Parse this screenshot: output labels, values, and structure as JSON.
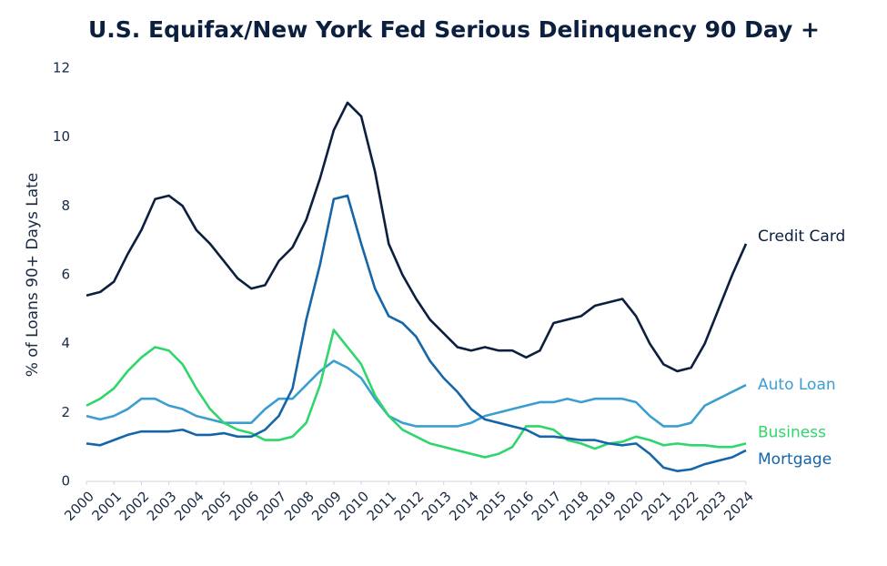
{
  "chart_data": {
    "type": "line",
    "title": "U.S. Equifax/New York Fed Serious Delinquency 90 Day +",
    "y_label": "% of Loans 90+ Days Late",
    "x": [
      2000,
      2000.5,
      2001,
      2001.5,
      2002,
      2002.5,
      2003,
      2003.5,
      2004,
      2004.5,
      2005,
      2005.5,
      2006,
      2006.5,
      2007,
      2007.5,
      2008,
      2008.5,
      2009,
      2009.5,
      2010,
      2010.5,
      2011,
      2011.5,
      2012,
      2012.5,
      2013,
      2013.5,
      2014,
      2014.5,
      2015,
      2015.5,
      2016,
      2016.5,
      2017,
      2017.5,
      2018,
      2018.5,
      2019,
      2019.5,
      2020,
      2020.5,
      2021,
      2021.5,
      2022,
      2022.5,
      2023,
      2023.5,
      2024
    ],
    "series": [
      {
        "name": "Credit Card",
        "color": "#0c1f3f",
        "values": [
          5.4,
          5.5,
          5.8,
          6.6,
          7.3,
          8.2,
          8.3,
          8.0,
          7.3,
          6.9,
          6.4,
          5.9,
          5.6,
          5.7,
          6.4,
          6.8,
          7.6,
          8.8,
          10.2,
          11.0,
          10.6,
          9.0,
          6.9,
          6.0,
          5.3,
          4.7,
          4.3,
          3.9,
          3.8,
          3.9,
          3.8,
          3.8,
          3.6,
          3.8,
          4.6,
          4.7,
          4.8,
          5.1,
          5.2,
          5.3,
          4.8,
          4.0,
          3.4,
          3.2,
          3.3,
          4.0,
          5.0,
          6.0,
          6.9
        ]
      },
      {
        "name": "Auto Loan",
        "color": "#3a9fd0",
        "values": [
          1.9,
          1.8,
          1.9,
          2.1,
          2.4,
          2.4,
          2.2,
          2.1,
          1.9,
          1.8,
          1.7,
          1.7,
          1.7,
          2.1,
          2.4,
          2.4,
          2.8,
          3.2,
          3.5,
          3.3,
          3.0,
          2.4,
          1.9,
          1.7,
          1.6,
          1.6,
          1.6,
          1.6,
          1.7,
          1.9,
          2.0,
          2.1,
          2.2,
          2.3,
          2.3,
          2.4,
          2.3,
          2.4,
          2.4,
          2.4,
          2.3,
          1.9,
          1.6,
          1.6,
          1.7,
          2.2,
          2.4,
          2.6,
          2.8
        ]
      },
      {
        "name": "Business",
        "color": "#2fd66b",
        "values": [
          2.2,
          2.4,
          2.7,
          3.2,
          3.6,
          3.9,
          3.8,
          3.4,
          2.7,
          2.1,
          1.7,
          1.5,
          1.4,
          1.2,
          1.2,
          1.3,
          1.7,
          2.8,
          4.4,
          3.9,
          3.4,
          2.5,
          1.9,
          1.5,
          1.3,
          1.1,
          1.0,
          0.9,
          0.8,
          0.7,
          0.8,
          1.0,
          1.6,
          1.6,
          1.5,
          1.2,
          1.1,
          0.95,
          1.1,
          1.15,
          1.3,
          1.2,
          1.05,
          1.1,
          1.05,
          1.05,
          1.0,
          1.0,
          1.1
        ]
      },
      {
        "name": "Mortgage",
        "color": "#1565a8",
        "values": [
          1.1,
          1.05,
          1.2,
          1.35,
          1.45,
          1.45,
          1.45,
          1.5,
          1.35,
          1.35,
          1.4,
          1.3,
          1.3,
          1.5,
          1.9,
          2.7,
          4.7,
          6.3,
          8.2,
          8.3,
          6.9,
          5.6,
          4.8,
          4.6,
          4.2,
          3.5,
          3.0,
          2.6,
          2.1,
          1.8,
          1.7,
          1.6,
          1.5,
          1.3,
          1.3,
          1.25,
          1.2,
          1.2,
          1.1,
          1.05,
          1.1,
          0.8,
          0.4,
          0.3,
          0.35,
          0.5,
          0.6,
          0.7,
          0.9
        ]
      }
    ],
    "xlim": [
      2000,
      2024
    ],
    "xticks": [
      2000,
      2001,
      2002,
      2003,
      2004,
      2005,
      2006,
      2007,
      2008,
      2009,
      2010,
      2011,
      2012,
      2013,
      2014,
      2015,
      2016,
      2017,
      2018,
      2019,
      2020,
      2021,
      2022,
      2023,
      2024
    ],
    "ylim": [
      0,
      12
    ],
    "yticks": [
      0,
      2,
      4,
      6,
      8,
      10,
      12
    ]
  }
}
